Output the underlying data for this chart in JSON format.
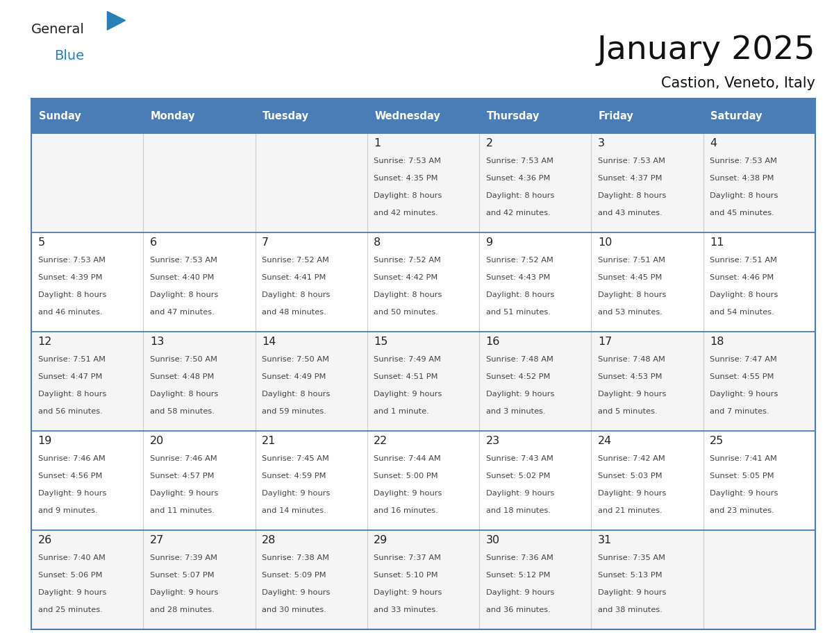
{
  "title": "January 2025",
  "subtitle": "Castion, Veneto, Italy",
  "days_of_week": [
    "Sunday",
    "Monday",
    "Tuesday",
    "Wednesday",
    "Thursday",
    "Friday",
    "Saturday"
  ],
  "header_bg": "#4A7DB5",
  "header_text": "#FFFFFF",
  "row_bg_even": "#F5F5F5",
  "row_bg_odd": "#FFFFFF",
  "day_number_color": "#222222",
  "cell_text_color": "#444444",
  "border_color": "#4A7DB5",
  "divider_color": "#CCCCCC",
  "calendar": [
    [
      null,
      null,
      null,
      {
        "day": 1,
        "sunrise": "7:53 AM",
        "sunset": "4:35 PM",
        "daylight": "8 hours\nand 42 minutes."
      },
      {
        "day": 2,
        "sunrise": "7:53 AM",
        "sunset": "4:36 PM",
        "daylight": "8 hours\nand 42 minutes."
      },
      {
        "day": 3,
        "sunrise": "7:53 AM",
        "sunset": "4:37 PM",
        "daylight": "8 hours\nand 43 minutes."
      },
      {
        "day": 4,
        "sunrise": "7:53 AM",
        "sunset": "4:38 PM",
        "daylight": "8 hours\nand 45 minutes."
      }
    ],
    [
      {
        "day": 5,
        "sunrise": "7:53 AM",
        "sunset": "4:39 PM",
        "daylight": "8 hours\nand 46 minutes."
      },
      {
        "day": 6,
        "sunrise": "7:53 AM",
        "sunset": "4:40 PM",
        "daylight": "8 hours\nand 47 minutes."
      },
      {
        "day": 7,
        "sunrise": "7:52 AM",
        "sunset": "4:41 PM",
        "daylight": "8 hours\nand 48 minutes."
      },
      {
        "day": 8,
        "sunrise": "7:52 AM",
        "sunset": "4:42 PM",
        "daylight": "8 hours\nand 50 minutes."
      },
      {
        "day": 9,
        "sunrise": "7:52 AM",
        "sunset": "4:43 PM",
        "daylight": "8 hours\nand 51 minutes."
      },
      {
        "day": 10,
        "sunrise": "7:51 AM",
        "sunset": "4:45 PM",
        "daylight": "8 hours\nand 53 minutes."
      },
      {
        "day": 11,
        "sunrise": "7:51 AM",
        "sunset": "4:46 PM",
        "daylight": "8 hours\nand 54 minutes."
      }
    ],
    [
      {
        "day": 12,
        "sunrise": "7:51 AM",
        "sunset": "4:47 PM",
        "daylight": "8 hours\nand 56 minutes."
      },
      {
        "day": 13,
        "sunrise": "7:50 AM",
        "sunset": "4:48 PM",
        "daylight": "8 hours\nand 58 minutes."
      },
      {
        "day": 14,
        "sunrise": "7:50 AM",
        "sunset": "4:49 PM",
        "daylight": "8 hours\nand 59 minutes."
      },
      {
        "day": 15,
        "sunrise": "7:49 AM",
        "sunset": "4:51 PM",
        "daylight": "9 hours\nand 1 minute."
      },
      {
        "day": 16,
        "sunrise": "7:48 AM",
        "sunset": "4:52 PM",
        "daylight": "9 hours\nand 3 minutes."
      },
      {
        "day": 17,
        "sunrise": "7:48 AM",
        "sunset": "4:53 PM",
        "daylight": "9 hours\nand 5 minutes."
      },
      {
        "day": 18,
        "sunrise": "7:47 AM",
        "sunset": "4:55 PM",
        "daylight": "9 hours\nand 7 minutes."
      }
    ],
    [
      {
        "day": 19,
        "sunrise": "7:46 AM",
        "sunset": "4:56 PM",
        "daylight": "9 hours\nand 9 minutes."
      },
      {
        "day": 20,
        "sunrise": "7:46 AM",
        "sunset": "4:57 PM",
        "daylight": "9 hours\nand 11 minutes."
      },
      {
        "day": 21,
        "sunrise": "7:45 AM",
        "sunset": "4:59 PM",
        "daylight": "9 hours\nand 14 minutes."
      },
      {
        "day": 22,
        "sunrise": "7:44 AM",
        "sunset": "5:00 PM",
        "daylight": "9 hours\nand 16 minutes."
      },
      {
        "day": 23,
        "sunrise": "7:43 AM",
        "sunset": "5:02 PM",
        "daylight": "9 hours\nand 18 minutes."
      },
      {
        "day": 24,
        "sunrise": "7:42 AM",
        "sunset": "5:03 PM",
        "daylight": "9 hours\nand 21 minutes."
      },
      {
        "day": 25,
        "sunrise": "7:41 AM",
        "sunset": "5:05 PM",
        "daylight": "9 hours\nand 23 minutes."
      }
    ],
    [
      {
        "day": 26,
        "sunrise": "7:40 AM",
        "sunset": "5:06 PM",
        "daylight": "9 hours\nand 25 minutes."
      },
      {
        "day": 27,
        "sunrise": "7:39 AM",
        "sunset": "5:07 PM",
        "daylight": "9 hours\nand 28 minutes."
      },
      {
        "day": 28,
        "sunrise": "7:38 AM",
        "sunset": "5:09 PM",
        "daylight": "9 hours\nand 30 minutes."
      },
      {
        "day": 29,
        "sunrise": "7:37 AM",
        "sunset": "5:10 PM",
        "daylight": "9 hours\nand 33 minutes."
      },
      {
        "day": 30,
        "sunrise": "7:36 AM",
        "sunset": "5:12 PM",
        "daylight": "9 hours\nand 36 minutes."
      },
      {
        "day": 31,
        "sunrise": "7:35 AM",
        "sunset": "5:13 PM",
        "daylight": "9 hours\nand 38 minutes."
      },
      null
    ]
  ],
  "logo_general_color": "#222222",
  "logo_blue_color": "#2980B9",
  "logo_triangle_color": "#2980B9",
  "fig_width": 11.88,
  "fig_height": 9.18,
  "fig_dpi": 100
}
